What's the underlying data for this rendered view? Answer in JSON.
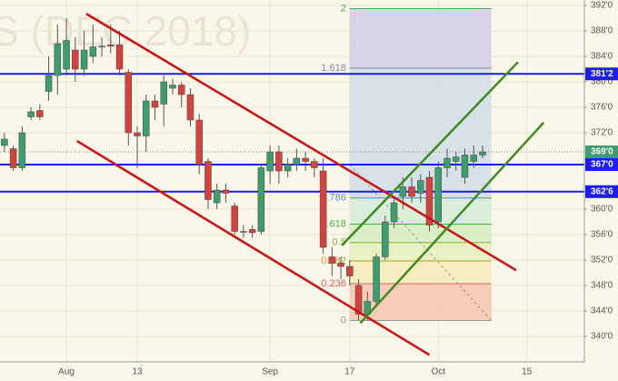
{
  "chart_data": {
    "type": "candlestick",
    "watermark": "S (DEC 2018)",
    "categories": [
      null,
      null,
      null,
      null,
      null,
      null,
      null,
      "Aug",
      null,
      null,
      null,
      null,
      null,
      null,
      null,
      "13",
      null,
      null,
      null,
      null,
      null,
      null,
      null,
      null,
      null,
      null,
      null,
      null,
      null,
      null,
      "Sep",
      null,
      null,
      null,
      null,
      null,
      null,
      null,
      null,
      "17",
      null,
      null,
      null,
      null,
      null,
      null,
      null,
      null,
      null,
      "Oct",
      null,
      null,
      null,
      null,
      null,
      null,
      null,
      null,
      null,
      "15",
      null,
      null,
      null,
      null,
      null,
      null
    ],
    "open": [
      370,
      369.5,
      366.5,
      374.5,
      375.5,
      378.5,
      381,
      382,
      385,
      382,
      384,
      385.5,
      385.8,
      385.8,
      381.5,
      372,
      371.5,
      377,
      376.5,
      379,
      379.5,
      378,
      374,
      367.5,
      361,
      363,
      360.5,
      356.5,
      356.8,
      356.5,
      366,
      369,
      366,
      367,
      368,
      367.5,
      366,
      352.5,
      351.5,
      351,
      348,
      343.5,
      345.5,
      352.5,
      358,
      362,
      363.5,
      362.5,
      365,
      358,
      366.5,
      367.5,
      365,
      367.5,
      368.5,
      null,
      null,
      null,
      null,
      null,
      null,
      null,
      null,
      null,
      null,
      null
    ],
    "high": [
      372,
      370,
      373,
      376,
      376.5,
      384,
      389,
      390,
      387,
      388,
      389,
      387,
      389,
      388,
      382,
      373,
      378,
      378,
      381,
      380.5,
      380,
      379,
      375,
      368,
      364,
      364,
      361,
      357.5,
      357.5,
      367,
      370,
      370,
      368,
      369.5,
      369,
      368,
      368,
      354,
      352.5,
      352,
      349,
      347,
      353,
      359,
      362,
      365,
      365,
      365.5,
      366,
      367.5,
      369.5,
      369,
      369.5,
      370,
      370,
      null,
      null,
      null,
      null,
      null,
      null,
      null,
      null,
      null,
      null,
      null
    ],
    "low": [
      369,
      366,
      366,
      374,
      374,
      377,
      378,
      381,
      380,
      381,
      383,
      384,
      384.5,
      381,
      370,
      366.5,
      369,
      374,
      373,
      378,
      376,
      373,
      365.5,
      360,
      360,
      361,
      356,
      355.5,
      355.5,
      356,
      364,
      364,
      365,
      366,
      366,
      365,
      353,
      349.5,
      349,
      348,
      342.5,
      342.5,
      345,
      352,
      357,
      360,
      361,
      361,
      356.5,
      357,
      365,
      366,
      364,
      366.5,
      368,
      null,
      null,
      null,
      null,
      null,
      null,
      null,
      null,
      null,
      null,
      null
    ],
    "close": [
      371,
      366.5,
      372,
      375.3,
      374.5,
      381,
      386,
      386.5,
      382,
      385,
      385.5,
      385.6,
      385.6,
      382,
      372,
      371.5,
      377,
      376,
      380,
      379.5,
      378,
      374,
      367,
      361.5,
      363,
      362.5,
      356.5,
      356.5,
      356.3,
      366.5,
      369,
      366,
      367,
      368,
      367.5,
      366.5,
      354,
      351.5,
      351,
      349.5,
      343.5,
      345.5,
      352.5,
      358,
      361,
      363.5,
      362,
      364.5,
      357.5,
      366.5,
      368,
      368.2,
      368.5,
      368.5,
      369,
      null,
      null,
      null,
      null,
      null,
      null,
      null,
      null,
      null,
      null,
      null
    ],
    "up_color": "#3f9c6e",
    "down_color": "#d2433f",
    "xlim": [
      -0.5,
      65.5
    ],
    "ylim": [
      336,
      392.86
    ],
    "yticks": [
      {
        "value": 392,
        "label": "392'0"
      },
      {
        "value": 388,
        "label": "388'0"
      },
      {
        "value": 384,
        "label": "384'0"
      },
      {
        "value": 380,
        "label": "380'0"
      },
      {
        "value": 376,
        "label": "376'0"
      },
      {
        "value": 372,
        "label": "372'0"
      },
      {
        "value": 360,
        "label": "360'0"
      },
      {
        "value": 356,
        "label": "356'0"
      },
      {
        "value": 352,
        "label": "352'0"
      },
      {
        "value": 348,
        "label": "348'0"
      },
      {
        "value": 344,
        "label": "344'0"
      },
      {
        "value": 340,
        "label": "340'0"
      }
    ],
    "grid": true,
    "levels": [
      {
        "value": 381.25,
        "label": "381'2",
        "color": "#1c1cf0"
      },
      {
        "value": 367,
        "label": "367'0",
        "color": "#1c1cf0"
      },
      {
        "value": 362.75,
        "label": "362'6",
        "color": "#1c1cf0"
      }
    ],
    "last": {
      "value": 369,
      "label": "369'0",
      "color": "#3f9c6e"
    },
    "fib": {
      "low": 342.5,
      "high": 367,
      "start": 39,
      "end": 55,
      "levels": [
        {
          "value": 0,
          "color": "#999999"
        },
        {
          "value": 0.236,
          "color": "#d86060"
        },
        {
          "value": 0.382,
          "color": "#b0a030"
        },
        {
          "value": 0.5,
          "color": "#90b030"
        },
        {
          "value": 0.618,
          "color": "#40b040"
        },
        {
          "value": 0.786,
          "color": "#4f8fbf"
        },
        {
          "value": 1.618,
          "color": "#8888aa"
        },
        {
          "value": 2,
          "color": "#40b060"
        }
      ],
      "zones": [
        "#f6c6b0",
        "#f7ebb9",
        "#e4f0bd",
        "#d3ecc1",
        "#d5ecd9",
        "#d2dde8",
        "#d2cde6",
        "#f6c6b0"
      ]
    },
    "trendlines": [
      {
        "color": "#cc1010",
        "points": [
          [
            9.24,
            390.7
          ],
          [
            57.8,
            350.4
          ]
        ]
      },
      {
        "color": "#cc1010",
        "points": [
          [
            8.2,
            370.7
          ],
          [
            48,
            337.1
          ]
        ]
      },
      {
        "color": "#3d8a1e",
        "points": [
          [
            38.1,
            354.3
          ],
          [
            58,
            383.1
          ]
        ]
      },
      {
        "color": "#3d8a1e",
        "points": [
          [
            40.2,
            342.1
          ],
          [
            60.9,
            373.6
          ]
        ]
      }
    ]
  }
}
